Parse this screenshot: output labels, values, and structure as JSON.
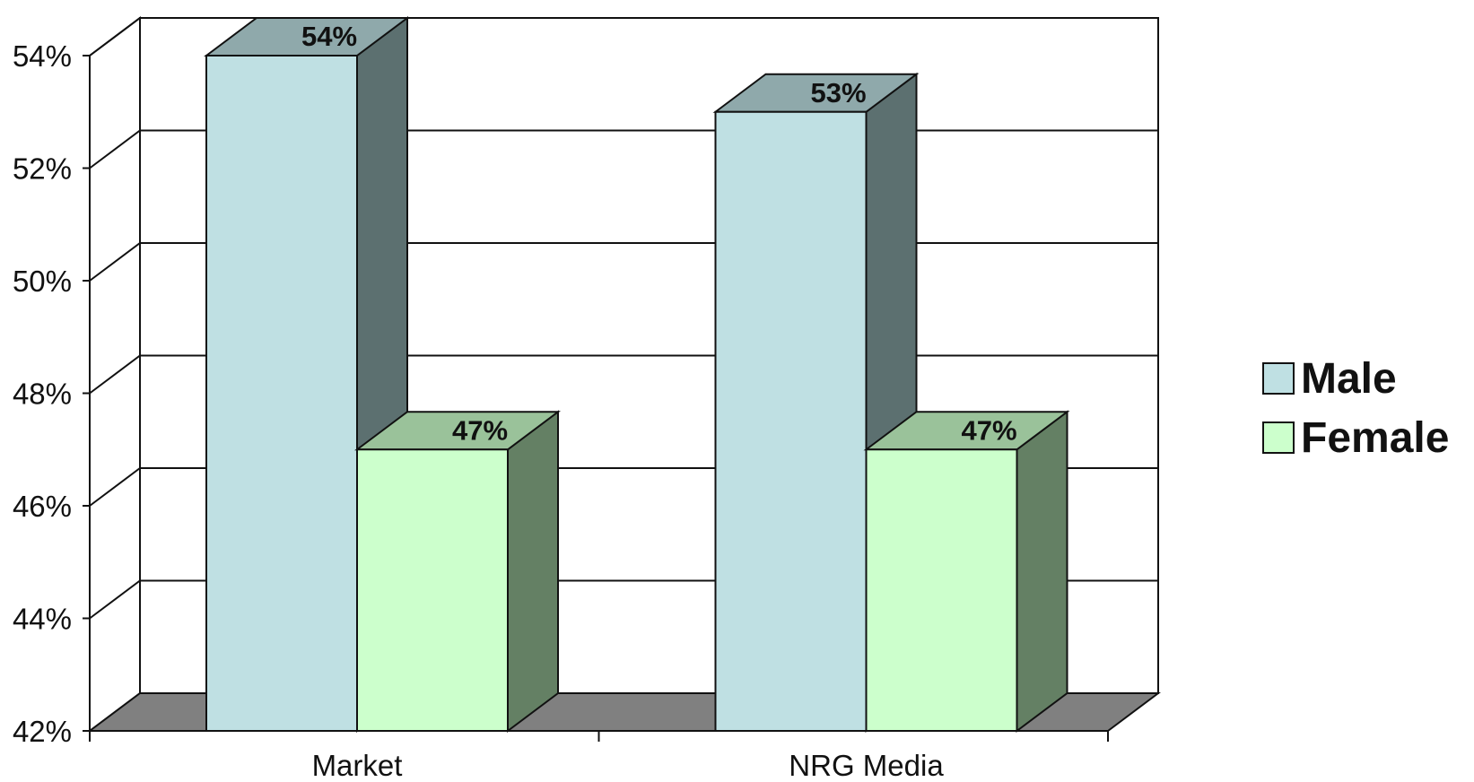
{
  "chart_data": {
    "type": "bar",
    "title": "",
    "xlabel": "",
    "ylabel": "",
    "categories": [
      "Market",
      "NRG Media"
    ],
    "series": [
      {
        "name": "Male",
        "values": [
          54,
          53
        ],
        "labels": [
          "54%",
          "53%"
        ]
      },
      {
        "name": "Female",
        "values": [
          47,
          47
        ],
        "labels": [
          "47%",
          "47%"
        ]
      }
    ],
    "ylim": [
      42,
      54
    ],
    "yticks": [
      42,
      44,
      46,
      48,
      50,
      52,
      54
    ],
    "ytick_labels": [
      "42%",
      "44%",
      "46%",
      "48%",
      "50%",
      "52%",
      "54%"
    ],
    "grid": true,
    "legend_position": "right",
    "style": "3d",
    "colors": {
      "male_front": "#bfe0e3",
      "male_top": "#8fa9ab",
      "male_side": "#5c7070",
      "female_front": "#ccffcc",
      "female_top": "#9ac29a",
      "female_side": "#648064",
      "floor": "#808080"
    }
  }
}
